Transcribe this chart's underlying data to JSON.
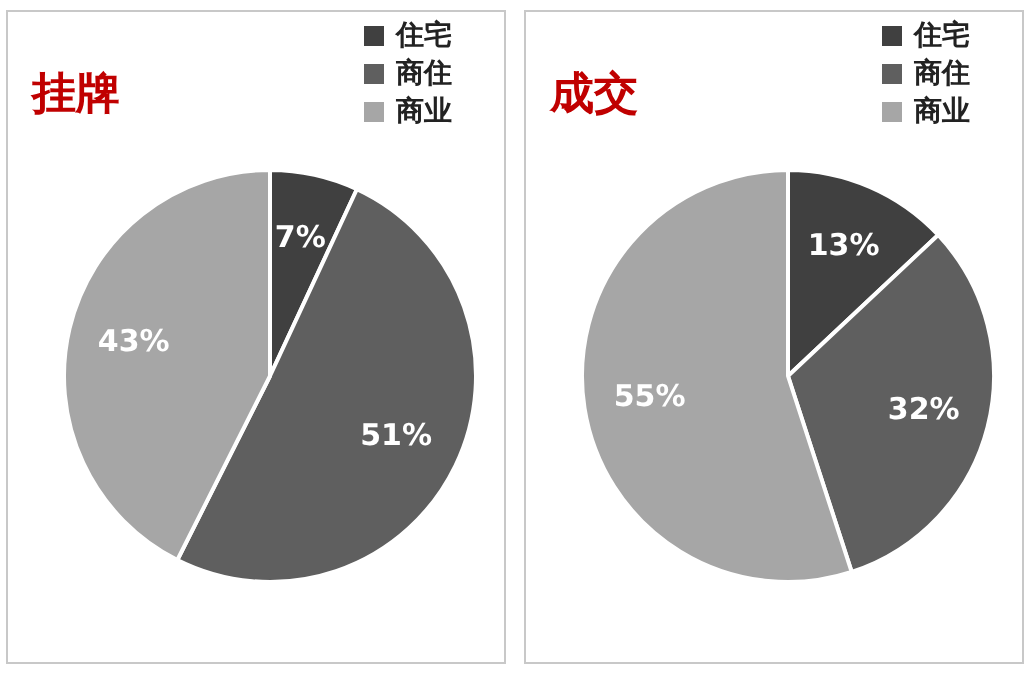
{
  "chart_data": [
    {
      "type": "pie",
      "title": "挂牌",
      "categories": [
        "住宅",
        "商住",
        "商业"
      ],
      "values": [
        7,
        51,
        43
      ],
      "colors": [
        "#404040",
        "#5f5f5f",
        "#a6a6a6"
      ],
      "value_labels": [
        "7%",
        "51%",
        "43%"
      ],
      "legend": "top right"
    },
    {
      "type": "pie",
      "title": "成交",
      "categories": [
        "住宅",
        "商住",
        "商业"
      ],
      "values": [
        13,
        32,
        55
      ],
      "colors": [
        "#404040",
        "#5f5f5f",
        "#a6a6a6"
      ],
      "value_labels": [
        "13%",
        "32%",
        "55%"
      ],
      "legend": "top right"
    }
  ]
}
